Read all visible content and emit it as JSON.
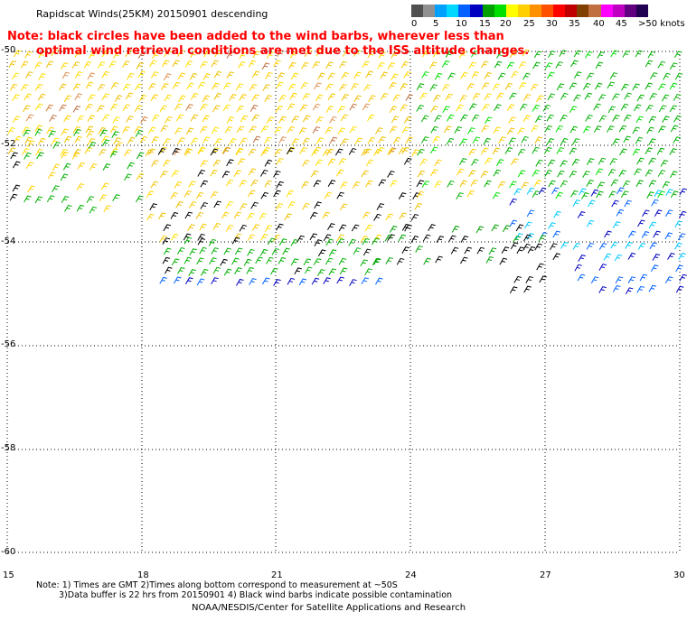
{
  "header": {
    "title": "Rapidscat Winds(25KM) 20150901 descending",
    "warning_line1": "Note: black circles have been added to the wind barbs, wherever less than",
    "warning_line2": "optimal wind retrieval conditions are met due to the ISS altitude changes."
  },
  "legend": {
    "colors": [
      "#505050",
      "#909090",
      "#00a0ff",
      "#00d8ff",
      "#0060ff",
      "#0000c0",
      "#00a000",
      "#00e000",
      "#ffff00",
      "#ffd000",
      "#ff9000",
      "#ff5000",
      "#ff0000",
      "#c00000",
      "#804000",
      "#c07040",
      "#ff00ff",
      "#c000c0",
      "#600080",
      "#200050"
    ],
    "labels": [
      "0",
      "5",
      "10",
      "15",
      "20",
      "25",
      "30",
      "35",
      "40",
      "45",
      ">50 knots"
    ],
    "label_offsets": [
      5,
      29,
      54,
      80,
      103,
      129,
      154,
      179,
      206,
      231,
      256
    ]
  },
  "axes": {
    "y_labels": [
      "-50",
      "-52",
      "-54",
      "-56",
      "-58",
      "-60"
    ],
    "x_labels": [
      "15",
      "18",
      "21",
      "24",
      "27",
      "30"
    ]
  },
  "footer": {
    "note_line1": "Note: 1) Times are GMT 2)Times along bottom correspond to measurement at ~50S",
    "note_line2": "3)Data buffer is 22 hrs from 20150901 4) Black wind barbs indicate possible contamination",
    "credit": "NOAA/NESDIS/Center for Satellite Applications and Research"
  }
}
